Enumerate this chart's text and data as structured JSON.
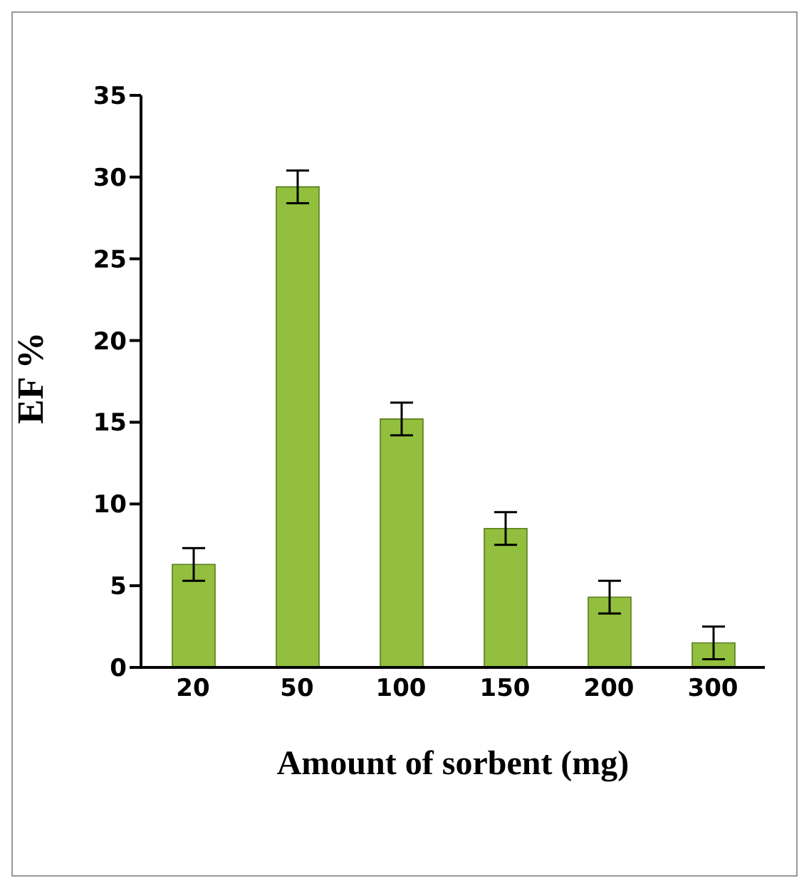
{
  "chart_data": {
    "type": "bar",
    "xlabel": "Amount of sorbent (mg)",
    "ylabel": "EF %",
    "categories": [
      "20",
      "50",
      "100",
      "150",
      "200",
      "300"
    ],
    "values": [
      6.3,
      29.4,
      15.2,
      8.5,
      4.3,
      1.5
    ],
    "errors": [
      1,
      1,
      1,
      1,
      1,
      1
    ],
    "color": "#92c03e",
    "ylim": [
      0,
      35
    ],
    "yticks": [
      0,
      5,
      10,
      15,
      20,
      25,
      30,
      35
    ],
    "grid": false,
    "legend": false
  }
}
